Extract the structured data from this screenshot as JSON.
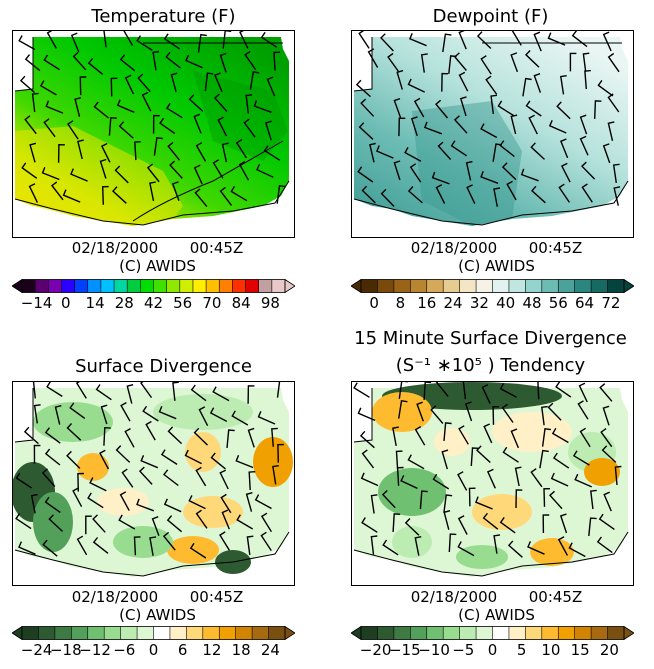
{
  "panels": [
    {
      "id": "temperature",
      "title": "Temperature (F)",
      "title2": "",
      "date": "02/18/2000",
      "time": "00:45Z",
      "credit": "(C) AWIDS",
      "colorbar": {
        "ticks": [
          "−14",
          "0",
          "14",
          "28",
          "42",
          "56",
          "70",
          "84",
          "98"
        ],
        "colors": [
          "#1a001a",
          "#5a0070",
          "#7a00b0",
          "#2a00ff",
          "#0040ff",
          "#0090ff",
          "#00c0ff",
          "#00d6a0",
          "#00cc40",
          "#00dd00",
          "#40e000",
          "#90e800",
          "#d0ee00",
          "#ffee00",
          "#ffc000",
          "#ff8000",
          "#ff3000",
          "#e00000",
          "#c0a0a0",
          "#e8c8c8"
        ]
      }
    },
    {
      "id": "dewpoint",
      "title": "Dewpoint (F)",
      "title2": "",
      "date": "02/18/2000",
      "time": "00:45Z",
      "credit": "(C) AWIDS",
      "colorbar": {
        "ticks": [
          "0",
          "8",
          "16",
          "24",
          "32",
          "40",
          "48",
          "56",
          "64",
          "72"
        ],
        "colors": [
          "#4a2a05",
          "#7a4a0a",
          "#9a6418",
          "#b8862e",
          "#d4aa5a",
          "#e6cc8e",
          "#f4e6c4",
          "#f6f2e8",
          "#e2f2ee",
          "#c0e6e0",
          "#94d4cc",
          "#6cbcb4",
          "#4aa29a",
          "#2c8680",
          "#166a62",
          "#04443c"
        ]
      }
    },
    {
      "id": "divergence",
      "title": "Surface Divergence",
      "title2": "",
      "date": "02/18/2000",
      "time": "00:45Z",
      "credit": "(C) AWIDS",
      "colorbar": {
        "ticks": [
          "−24",
          "−18",
          "−12",
          "−6",
          "0",
          "6",
          "12",
          "18",
          "24"
        ],
        "colors": [
          "#1e3e22",
          "#2e5a32",
          "#3e7a44",
          "#52a05a",
          "#70c072",
          "#98dc90",
          "#bcecb2",
          "#ddf6d4",
          "#ffffff",
          "#fff0c8",
          "#ffd87a",
          "#ffbb30",
          "#f0a000",
          "#d28400",
          "#a86a10",
          "#7a5010"
        ]
      }
    },
    {
      "id": "divergence-tendency",
      "title": "15 Minute Surface Divergence",
      "title2": "(S⁻¹ ∗10⁵ ) Tendency",
      "date": "02/18/2000",
      "time": "00:45Z",
      "credit": "(C) AWIDS",
      "colorbar": {
        "ticks": [
          "−20",
          "−15",
          "−10",
          "−5",
          "0",
          "5",
          "10",
          "15",
          "20"
        ],
        "colors": [
          "#1e3e22",
          "#2e5a32",
          "#3e7a44",
          "#52a05a",
          "#70c072",
          "#98dc90",
          "#bcecb2",
          "#ddf6d4",
          "#ffffff",
          "#fff0c8",
          "#ffd87a",
          "#ffbb30",
          "#f0a000",
          "#d28400",
          "#a86a10",
          "#7a5010"
        ]
      }
    }
  ]
}
